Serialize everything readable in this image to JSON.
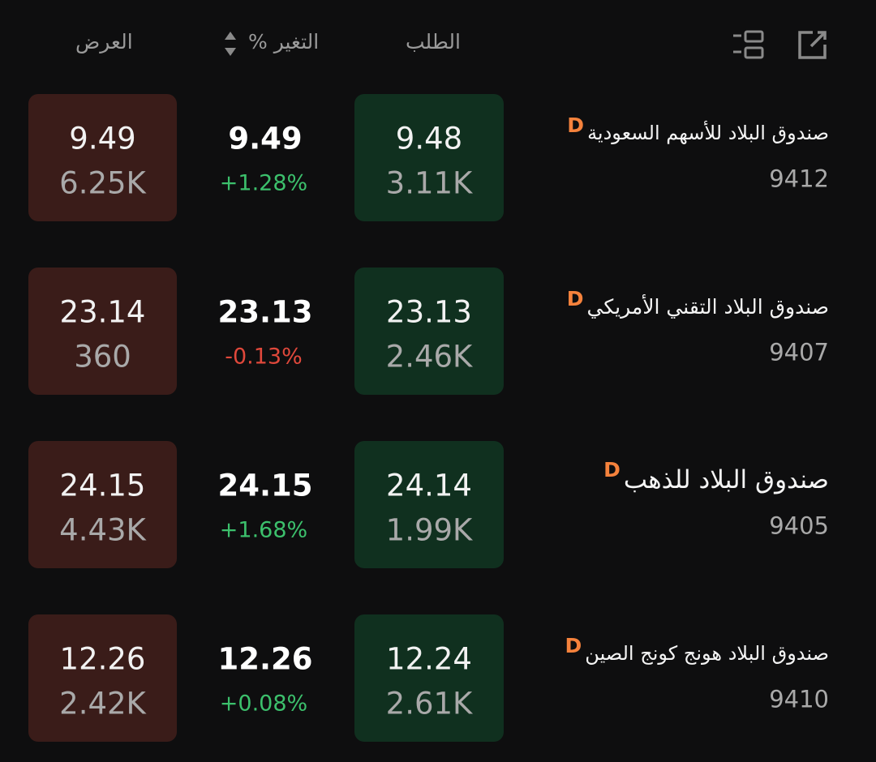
{
  "header": {
    "ask": "العرض",
    "change": "التغير %",
    "bid": "الطلب"
  },
  "rows": [
    {
      "name": "صندوق البلاد للأسهم السعودية",
      "badge": "D",
      "code": "9412",
      "bid_price": "9.48",
      "bid_qty": "3.11K",
      "last": "9.49",
      "change": "+1.28%",
      "change_color": "#3cc06c",
      "ask_price": "9.49",
      "ask_qty": "6.25K",
      "name_size": 24
    },
    {
      "name": "صندوق البلاد التقني الأمريكي",
      "badge": "D",
      "code": "9407",
      "bid_price": "23.13",
      "bid_qty": "2.46K",
      "last": "23.13",
      "change": "-0.13%",
      "change_color": "#e0483b",
      "ask_price": "23.14",
      "ask_qty": "360",
      "name_size": 25
    },
    {
      "name": "صندوق البلاد للذهب",
      "badge": "D",
      "code": "9405",
      "bid_price": "24.14",
      "bid_qty": "1.99K",
      "last": "24.15",
      "change": "+1.68%",
      "change_color": "#3cc06c",
      "ask_price": "24.15",
      "ask_qty": "4.43K",
      "name_size": 31
    },
    {
      "name": "صندوق البلاد هونج كونج الصين",
      "badge": "D",
      "code": "9410",
      "bid_price": "12.24",
      "bid_qty": "2.61K",
      "last": "12.26",
      "change": "+0.08%",
      "change_color": "#3cc06c",
      "ask_price": "12.26",
      "ask_qty": "2.42K",
      "name_size": 24
    }
  ]
}
